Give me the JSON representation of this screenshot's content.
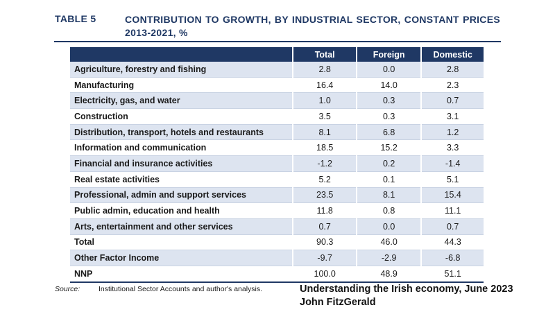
{
  "table_label": "TABLE 5",
  "title": "CONTRIBUTION TO GROWTH, BY INDUSTRIAL SECTOR, CONSTANT PRICES 2013-2021, %",
  "colors": {
    "header_bg": "#1f3864",
    "row_shade": "#dde4f0",
    "title": "#1f3864"
  },
  "columns": [
    "Total",
    "Foreign",
    "Domestic"
  ],
  "rows": [
    {
      "label": "Agriculture, forestry and fishing",
      "total": "2.8",
      "foreign": "0.0",
      "domestic": "2.8"
    },
    {
      "label": "Manufacturing",
      "total": "16.4",
      "foreign": "14.0",
      "domestic": "2.3"
    },
    {
      "label": "Electricity, gas, and water",
      "total": "1.0",
      "foreign": "0.3",
      "domestic": "0.7"
    },
    {
      "label": "Construction",
      "total": "3.5",
      "foreign": "0.3",
      "domestic": "3.1"
    },
    {
      "label": "Distribution, transport, hotels and restaurants",
      "total": "8.1",
      "foreign": "6.8",
      "domestic": "1.2"
    },
    {
      "label": "Information and communication",
      "total": "18.5",
      "foreign": "15.2",
      "domestic": "3.3"
    },
    {
      "label": "Financial and insurance activities",
      "total": "-1.2",
      "foreign": "0.2",
      "domestic": "-1.4"
    },
    {
      "label": "Real estate activities",
      "total": "5.2",
      "foreign": "0.1",
      "domestic": "5.1"
    },
    {
      "label": "Professional, admin and support services",
      "total": "23.5",
      "foreign": "8.1",
      "domestic": "15.4"
    },
    {
      "label": "Public admin, education and health",
      "total": "11.8",
      "foreign": "0.8",
      "domestic": "11.1"
    },
    {
      "label": "Arts, entertainment and other services",
      "total": "0.7",
      "foreign": "0.0",
      "domestic": "0.7"
    },
    {
      "label": "Total",
      "total": "90.3",
      "foreign": "46.0",
      "domestic": "44.3"
    },
    {
      "label": "Other Factor Income",
      "total": "-9.7",
      "foreign": "-2.9",
      "domestic": "-6.8"
    },
    {
      "label": "NNP",
      "total": "100.0",
      "foreign": "48.9",
      "domestic": "51.1"
    }
  ],
  "source_label": "Source:",
  "source_text": "Institutional Sector Accounts and author's analysis.",
  "credit_line1": "Understanding the Irish economy, June 2023",
  "credit_line2": "John FitzGerald"
}
